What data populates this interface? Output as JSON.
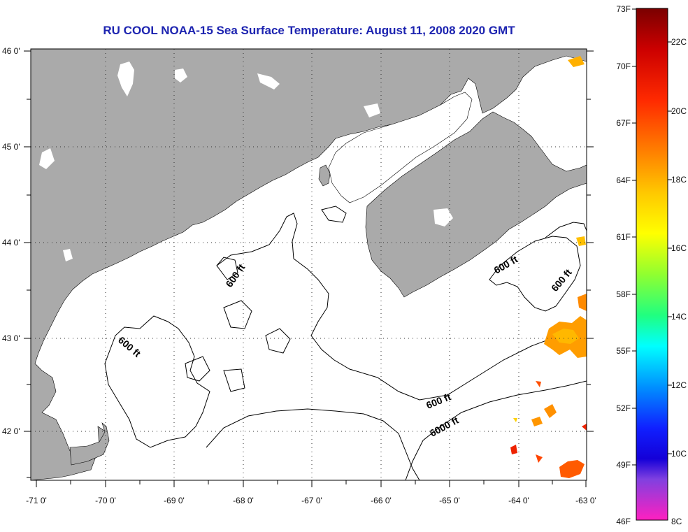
{
  "title": "RU COOL  NOAA-15  Sea Surface Temperature:  August 11, 2008 2020 GMT",
  "map": {
    "lon_labels": [
      "-71 0'",
      "-70 0'",
      "-69 0'",
      "-68 0'",
      "-67 0'",
      "-66 0'",
      "-65 0'",
      "-64 0'",
      "-63 0'"
    ],
    "lat_labels": [
      "46 0'",
      "45 0'",
      "44 0'",
      "43 0'",
      "42 0'"
    ],
    "contour_labels": [
      "600 ft",
      "600 ft",
      "600 ft",
      "600 ft",
      "600 ft",
      "6000 ft"
    ],
    "colors": {
      "land": "#aaaaaa",
      "ocean": "#ffffff",
      "contour": "#000000"
    }
  },
  "colorbar": {
    "fahrenheit_labels": [
      "73F",
      "70F",
      "67F",
      "64F",
      "61F",
      "58F",
      "55F",
      "52F",
      "49F",
      "46F"
    ],
    "celsius_labels": [
      "22C",
      "20C",
      "18C",
      "16C",
      "14C",
      "12C",
      "10C",
      "8C"
    ]
  }
}
